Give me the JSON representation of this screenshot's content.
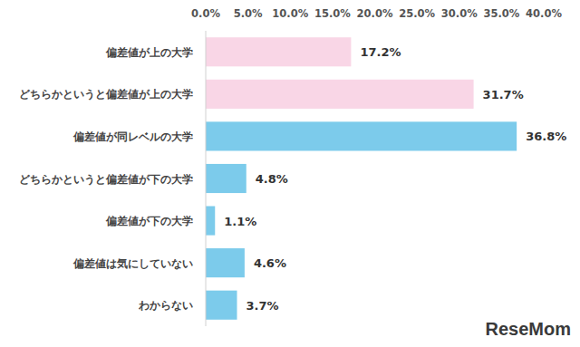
{
  "chart_data": {
    "type": "bar",
    "orientation": "horizontal",
    "categories": [
      "偏差値が上の大学",
      "どちらかというと偏差値が上の大学",
      "偏差値が同レベルの大学",
      "どちらかというと偏差値が下の大学",
      "偏差値が下の大学",
      "偏差値は気にしていない",
      "わからない"
    ],
    "values": [
      17.2,
      31.7,
      36.8,
      4.8,
      1.1,
      4.6,
      3.7
    ],
    "value_labels": [
      "17.2%",
      "31.7%",
      "36.8%",
      "4.8%",
      "1.1%",
      "4.6%",
      "3.7%"
    ],
    "colors": [
      "#f9d6e6",
      "#f9d6e6",
      "#7ccbeb",
      "#7ccbeb",
      "#7ccbeb",
      "#7ccbeb",
      "#7ccbeb"
    ],
    "xlim": [
      0,
      40
    ],
    "xticks": [
      {
        "value": 0,
        "label": "0.0%"
      },
      {
        "value": 5,
        "label": "5.0%"
      },
      {
        "value": 10,
        "label": "10.0%"
      },
      {
        "value": 15,
        "label": "15.0%"
      },
      {
        "value": 20,
        "label": "20.0%"
      },
      {
        "value": 25,
        "label": "25.0%"
      },
      {
        "value": 30,
        "label": "30.0%"
      },
      {
        "value": 35,
        "label": "35.0%"
      },
      {
        "value": 40,
        "label": "40.0%"
      }
    ],
    "grid": false,
    "data_labels": true,
    "watermark": "ReseMom"
  }
}
